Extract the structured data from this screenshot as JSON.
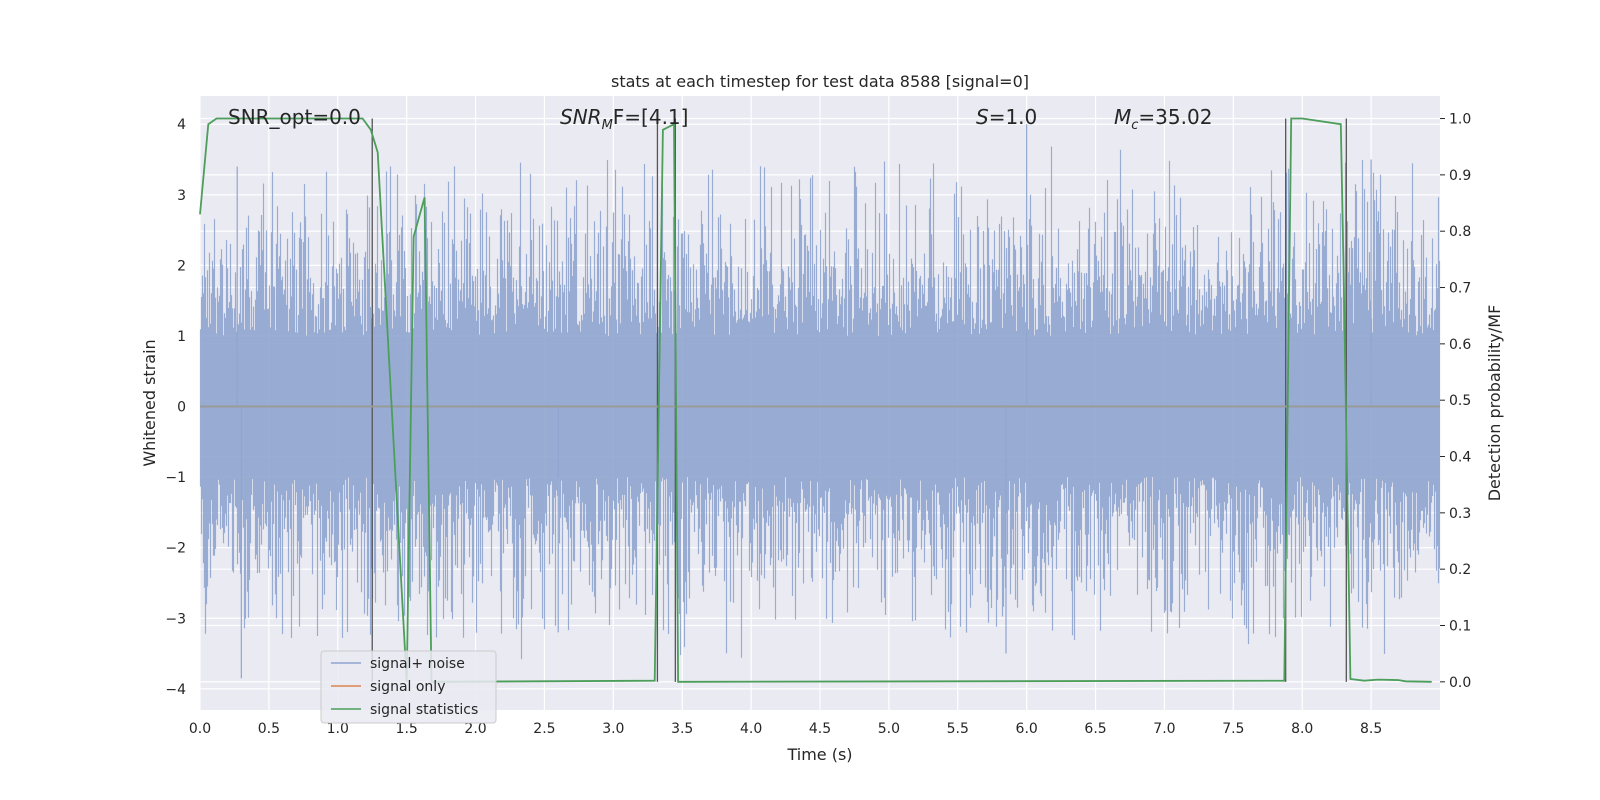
{
  "chart_data": {
    "type": "line",
    "title": "stats at each timestep for test data 8588 [signal=0]",
    "xlabel": "Time (s)",
    "ylabel": "Whitened strain",
    "y2label": "Detection probability/MF",
    "xlim": [
      0.0,
      9.0
    ],
    "ylim": [
      -4.3,
      4.4
    ],
    "y2lim": [
      -0.05,
      1.04
    ],
    "xticks": [
      "0.0",
      "0.5",
      "1.0",
      "1.5",
      "2.0",
      "2.5",
      "3.0",
      "3.5",
      "4.0",
      "4.5",
      "5.0",
      "5.5",
      "6.0",
      "6.5",
      "7.0",
      "7.5",
      "8.0",
      "8.5"
    ],
    "yticks": [
      "4",
      "3",
      "2",
      "1",
      "0",
      "−1",
      "−2",
      "−3",
      "−4"
    ],
    "y2ticks": [
      "1.0",
      "0.9",
      "0.8",
      "0.7",
      "0.6",
      "0.5",
      "0.4",
      "0.3",
      "0.2",
      "0.1",
      "0.0"
    ],
    "grid": true,
    "legend_position": "lower-left",
    "annotations": {
      "snr_opt": "SNR_opt=0.0",
      "snr_mf_sym": "SNR",
      "snr_mf_sub": "M",
      "snr_mf_rest": "F=[4.1]",
      "s_sym": "S",
      "s_rest": "=1.0",
      "mc_sym": "M",
      "mc_sub": "c",
      "mc_rest": "=35.02"
    },
    "series": [
      {
        "name": "signal+ noise",
        "color": "#8fa5cf",
        "description_values": "dense whitened noise, amplitude mostly within ±2.5, peaks near 4 and -3.8",
        "envelope": {
          "upper_typical": 2.4,
          "lower_typical": -2.4,
          "max": 4.0,
          "min": -3.85
        }
      },
      {
        "name": "signal only",
        "color": "#dd8452",
        "x": [
          0.0,
          9.0
        ],
        "y": [
          0.0,
          0.0
        ]
      },
      {
        "name": "signal statistics",
        "color": "#4c9e5a",
        "x": [
          0.0,
          0.06,
          0.12,
          1.18,
          1.24,
          1.29,
          1.5,
          1.55,
          1.63,
          1.68,
          3.3,
          3.36,
          3.44,
          3.47,
          3.52,
          7.87,
          7.92,
          8.0,
          8.28,
          8.3,
          8.35,
          8.45,
          8.55,
          8.7,
          8.75,
          8.94
        ],
        "y": [
          0.83,
          0.99,
          1.0,
          1.0,
          0.98,
          0.94,
          0.0,
          0.79,
          0.86,
          0.0,
          0.002,
          0.98,
          0.99,
          0.0,
          0.0,
          0.002,
          1.0,
          1.0,
          0.99,
          0.73,
          0.005,
          0.002,
          0.004,
          0.003,
          0.001,
          0.0
        ]
      }
    ],
    "vertical_markers_x": [
      1.25,
      3.32,
      3.45,
      7.88,
      8.32
    ]
  }
}
